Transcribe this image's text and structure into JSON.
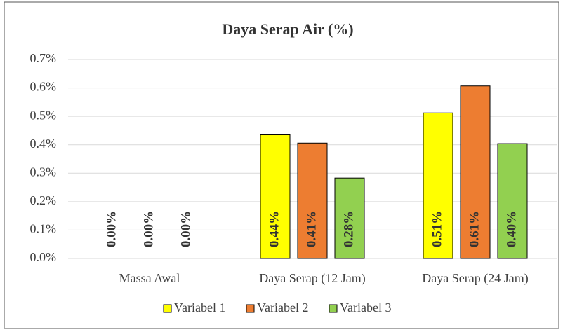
{
  "chart_data": {
    "type": "bar",
    "title": "Daya Serap Air (%)",
    "categories": [
      "Massa Awal",
      "Daya Serap (12 Jam)",
      "Daya Serap (24 Jam)"
    ],
    "series": [
      {
        "name": "Variabel 1",
        "color": "#ffff00",
        "values": [
          0,
          0.435,
          0.512
        ],
        "value_labels": [
          "0.00%",
          "0.44%",
          "0.51%"
        ]
      },
      {
        "name": "Variabel 2",
        "color": "#ed7d31",
        "values": [
          0,
          0.406,
          0.607
        ],
        "value_labels": [
          "0.00%",
          "0.41%",
          "0.61%"
        ]
      },
      {
        "name": "Variabel 3",
        "color": "#92d050",
        "values": [
          0,
          0.283,
          0.404
        ],
        "value_labels": [
          "0.00%",
          "0.28%",
          "0.40%"
        ]
      }
    ],
    "ylim": [
      0,
      0.7
    ],
    "yticks": [
      {
        "value": 0,
        "label": "0.0%"
      },
      {
        "value": 0.1,
        "label": "0.1%"
      },
      {
        "value": 0.2,
        "label": "0.2%"
      },
      {
        "value": 0.3,
        "label": "0.3%"
      },
      {
        "value": 0.4,
        "label": "0.4%"
      },
      {
        "value": 0.5,
        "label": "0.5%"
      },
      {
        "value": 0.6,
        "label": "0.6%"
      },
      {
        "value": 0.7,
        "label": "0.7%"
      }
    ],
    "grid": true,
    "legend": "bottom"
  }
}
